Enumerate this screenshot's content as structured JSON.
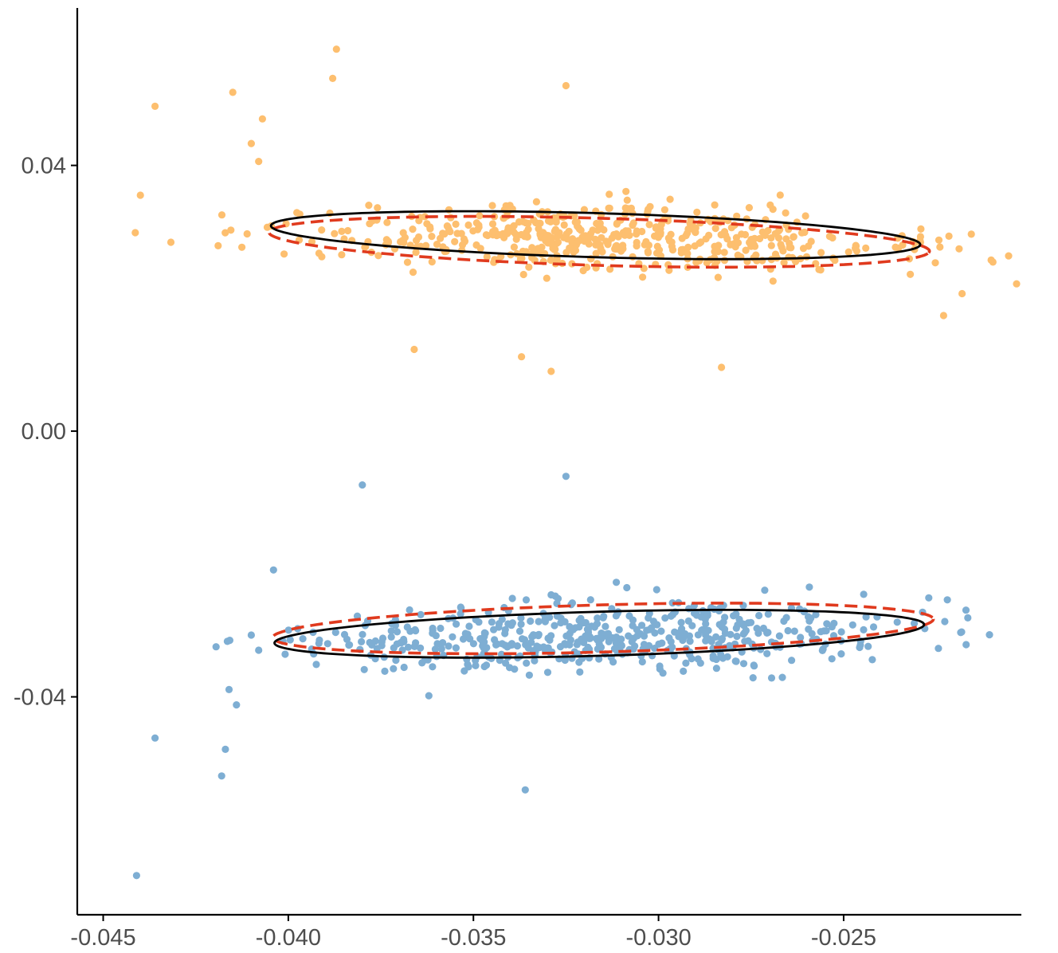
{
  "chart_data": {
    "type": "scatter",
    "title": "",
    "xlabel": "",
    "ylabel": "",
    "xlim": [
      -0.0457,
      -0.0202
    ],
    "ylim": [
      -0.0728,
      0.0637
    ],
    "x_ticks": [
      -0.045,
      -0.04,
      -0.035,
      -0.03,
      -0.025
    ],
    "x_tick_labels": [
      "-0.045",
      "-0.040",
      "-0.035",
      "-0.030",
      "-0.025"
    ],
    "y_ticks": [
      0.04,
      0.0,
      -0.04
    ],
    "y_tick_labels": [
      "0.04",
      "0.00",
      "-0.04"
    ],
    "grid": false,
    "legend": "none",
    "colors": {
      "upper_points": "#fdbf6f",
      "lower_points": "#7eaed3",
      "ellipse_solid": "#000000",
      "ellipse_dashed": "#e03a1e",
      "axis": "#000000"
    },
    "series": [
      {
        "points_color": "#fdbf6f",
        "point_count": 520,
        "seed": 12345,
        "rotation_deg": -10.6,
        "center": [
          -0.0317,
          0.029
        ],
        "sd_major": 0.0043,
        "sd_minor": 0.0039,
        "outliers": [
          [
            -0.0436,
            0.0489
          ],
          [
            -0.0415,
            0.051
          ],
          [
            -0.0387,
            0.0575
          ],
          [
            -0.0388,
            0.0531
          ],
          [
            -0.041,
            0.0433
          ],
          [
            -0.0408,
            0.0406
          ],
          [
            -0.0407,
            0.047
          ],
          [
            -0.0366,
            0.0123
          ],
          [
            -0.0337,
            0.0112
          ],
          [
            -0.0329,
            0.009
          ],
          [
            -0.0283,
            0.0096
          ],
          [
            -0.0232,
            0.0236
          ],
          [
            -0.0218,
            0.0207
          ],
          [
            -0.0223,
            0.0174
          ],
          [
            -0.0325,
            0.052
          ]
        ],
        "ellipse_solid": {
          "cx": -0.0317,
          "cy": 0.0295,
          "a": 0.0089,
          "b": 0.00327,
          "angle_deg": -10.6
        },
        "ellipse_dashed": {
          "cx": -0.0316,
          "cy": 0.0285,
          "a": 0.00905,
          "b": 0.0035,
          "angle_deg": -10.6
        }
      },
      {
        "points_color": "#7eaed3",
        "point_count": 520,
        "seed": 67890,
        "rotation_deg": 10.4,
        "center": [
          -0.0315,
          -0.031
        ],
        "sd_major": 0.0043,
        "sd_minor": 0.0039,
        "outliers": [
          [
            -0.0441,
            -0.0669
          ],
          [
            -0.0418,
            -0.0519
          ],
          [
            -0.0436,
            -0.0462
          ],
          [
            -0.0417,
            -0.0479
          ],
          [
            -0.0416,
            -0.0389
          ],
          [
            -0.0414,
            -0.0412
          ],
          [
            -0.0404,
            -0.0209
          ],
          [
            -0.038,
            -0.0081
          ],
          [
            -0.0325,
            -0.0068
          ],
          [
            -0.0336,
            -0.054
          ],
          [
            -0.0227,
            -0.0251
          ],
          [
            -0.0222,
            -0.0254
          ],
          [
            -0.041,
            -0.0307
          ]
        ],
        "ellipse_solid": {
          "cx": -0.0316,
          "cy": -0.0305,
          "a": 0.0089,
          "b": 0.00327,
          "angle_deg": 10.4
        },
        "ellipse_dashed": {
          "cx": -0.0315,
          "cy": -0.0297,
          "a": 0.00905,
          "b": 0.0035,
          "angle_deg": 10.4
        }
      }
    ]
  }
}
